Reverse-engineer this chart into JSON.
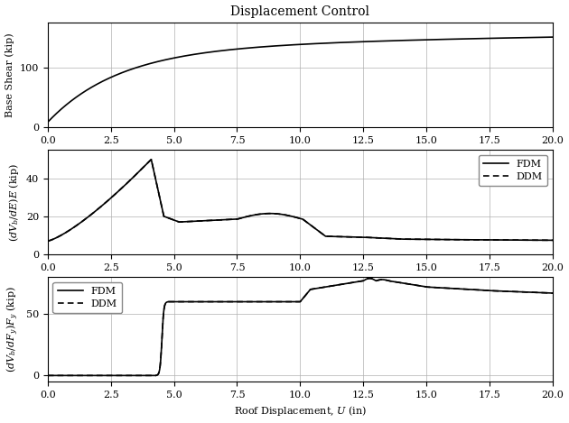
{
  "title": "Displacement Control",
  "xlabel": "Roof Displacement, $U$ (in)",
  "ylabel1": "Base Shear (kip)",
  "ylabel2": "$(dV_b/dE)E$ (kip)",
  "ylabel3": "$(dV_b/dF_y)F_y$ (kip)",
  "xlim": [
    0.0,
    20.0
  ],
  "xticks": [
    0.0,
    2.5,
    5.0,
    7.5,
    10.0,
    12.5,
    15.0,
    17.5,
    20.0
  ],
  "ylim1": [
    0,
    175
  ],
  "ylim2": [
    0,
    55
  ],
  "ylim3": [
    -5,
    80
  ],
  "yticks1": [
    0,
    100
  ],
  "yticks2": [
    0,
    20,
    40
  ],
  "yticks3": [
    0,
    50
  ],
  "grid_color": "#b0b0b0",
  "line_color": "#000000",
  "background_color": "#ffffff",
  "title_fontsize": 10,
  "label_fontsize": 8,
  "tick_fontsize": 8,
  "legend_fontsize": 8,
  "linewidth": 1.2
}
